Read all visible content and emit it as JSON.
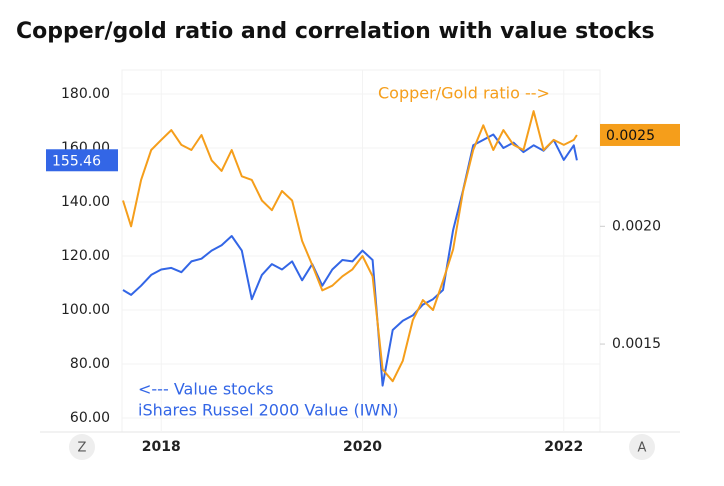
{
  "chart_data": {
    "type": "line",
    "title": "Copper/gold ratio and correlation with value stocks",
    "x": [
      2017.62,
      2017.7,
      2017.8,
      2017.9,
      2018.0,
      2018.1,
      2018.2,
      2018.3,
      2018.4,
      2018.5,
      2018.6,
      2018.7,
      2018.8,
      2018.9,
      2019.0,
      2019.1,
      2019.2,
      2019.3,
      2019.4,
      2019.5,
      2019.6,
      2019.7,
      2019.8,
      2019.9,
      2020.0,
      2020.1,
      2020.2,
      2020.3,
      2020.4,
      2020.5,
      2020.6,
      2020.7,
      2020.8,
      2020.9,
      2021.0,
      2021.1,
      2021.2,
      2021.3,
      2021.4,
      2021.5,
      2021.6,
      2021.7,
      2021.8,
      2021.9,
      2022.0,
      2022.1,
      2022.13
    ],
    "series": [
      {
        "name": "iShares Russel 2000 Value (IWN)",
        "color": "#3366e6",
        "axis": "y",
        "values": [
          107.4,
          105.6,
          109,
          113,
          115,
          115.6,
          114,
          118,
          119,
          122,
          124,
          127.4,
          122,
          104,
          113,
          117,
          115,
          118,
          111,
          117,
          109,
          115,
          118.5,
          118,
          122,
          118.5,
          72,
          92.6,
          96,
          98,
          102,
          104,
          107.4,
          129.6,
          144.4,
          161,
          163,
          165,
          160,
          162,
          158.5,
          161,
          159,
          163,
          155.6,
          161,
          155.46
        ]
      },
      {
        "name": "Copper/Gold ratio -->",
        "color": "#f59e1b",
        "axis": "y2",
        "values": [
          0.00213,
          0.002,
          0.00224,
          0.00241,
          0.00247,
          0.00253,
          0.00244,
          0.00241,
          0.0025,
          0.00235,
          0.00229,
          0.00241,
          0.00226,
          0.00224,
          0.00213,
          0.00208,
          0.00218,
          0.00213,
          0.00193,
          0.00182,
          0.00171,
          0.00173,
          0.00177,
          0.0018,
          0.00186,
          0.00177,
          0.00141,
          0.00137,
          0.00144,
          0.00159,
          0.00167,
          0.00163,
          0.00175,
          0.00189,
          0.00218,
          0.00241,
          0.00256,
          0.00241,
          0.00253,
          0.00244,
          0.00241,
          0.00265,
          0.00241,
          0.00247,
          0.00244,
          0.00247,
          0.0025
        ]
      }
    ],
    "annotations": [
      "<--- Value stocks"
    ],
    "xlim": [
      2017.61,
      2022.36
    ],
    "xticks": [
      2018,
      2020,
      2022
    ],
    "ylim": [
      54.8,
      188.9
    ],
    "yticks": [
      {
        "value": 60,
        "label": "60.00"
      },
      {
        "value": 80,
        "label": "80.00"
      },
      {
        "value": 100,
        "label": "100.00"
      },
      {
        "value": 120,
        "label": "120.00"
      },
      {
        "value": 140,
        "label": "140.00"
      },
      {
        "value": 160,
        "label": "160.00"
      },
      {
        "value": 180,
        "label": "180.00"
      }
    ],
    "y2lim": [
      0.00121,
      0.00293
    ],
    "y2_log": true,
    "y2ticks": [
      0.0015,
      {
        "value": 0.002,
        "label": "0.0020"
      },
      0.0025
    ]
  },
  "buttons": [
    "Z",
    "A"
  ]
}
